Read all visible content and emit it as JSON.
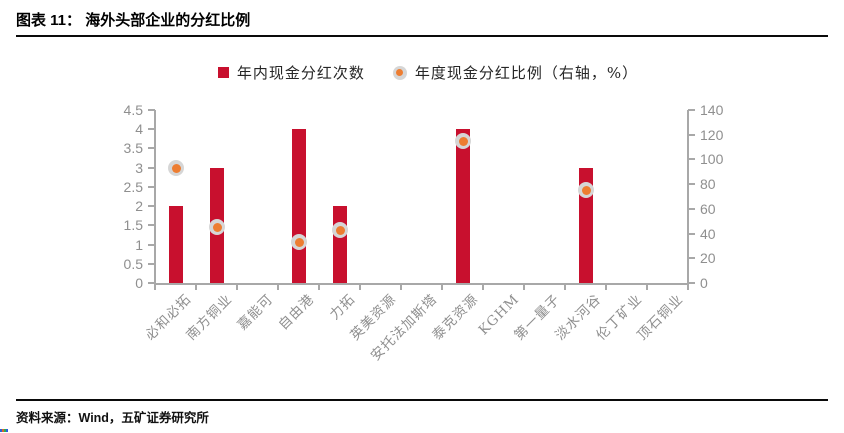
{
  "page": {
    "title": "图表 11： 海外头部企业的分红比例",
    "source": "资料来源：Wind，五矿证券研究所"
  },
  "legend": [
    {
      "label": "年内现金分红次数",
      "marker": "square",
      "color": "#C8102E"
    },
    {
      "label": "年度现金分红比例（右轴，%）",
      "marker": "ringed-dot",
      "color": "#ED7D31",
      "ring_color": "#D6D6D6"
    }
  ],
  "chart_data": {
    "type": "bar",
    "subtype": "bar-with-scatter-dual-axis",
    "title": "海外头部企业的分红比例",
    "categories": [
      "必和必拓",
      "南方铜业",
      "嘉能可",
      "自由港",
      "力拓",
      "英美资源",
      "安托法加斯塔",
      "泰克资源",
      "KGHM",
      "第一量子",
      "淡水河谷",
      "伦丁矿业",
      "顶石铜业"
    ],
    "series": [
      {
        "name": "年内现金分红次数",
        "type": "bar",
        "axis": "left",
        "color": "#C8102E",
        "values": [
          2,
          3,
          null,
          4,
          2,
          null,
          null,
          4,
          null,
          null,
          3,
          null,
          null
        ]
      },
      {
        "name": "年度现金分红比例（右轴，%）",
        "type": "scatter",
        "axis": "right",
        "color": "#ED7D31",
        "ring_color": "#D6D6D6",
        "values": [
          93,
          45,
          null,
          33,
          43,
          null,
          null,
          115,
          null,
          null,
          75,
          null,
          null
        ]
      }
    ],
    "left_axis": {
      "min": 0,
      "max": 4.5,
      "step": 0.5,
      "ticks": [
        "0",
        "0.5",
        "1",
        "1.5",
        "2",
        "2.5",
        "3",
        "3.5",
        "4",
        "4.5"
      ]
    },
    "right_axis": {
      "min": 0,
      "max": 140,
      "step": 20,
      "ticks": [
        "0",
        "20",
        "40",
        "60",
        "80",
        "100",
        "120",
        "140"
      ]
    },
    "grid": false,
    "legend_position": "top-center",
    "category_label_rotation_deg": -45
  }
}
